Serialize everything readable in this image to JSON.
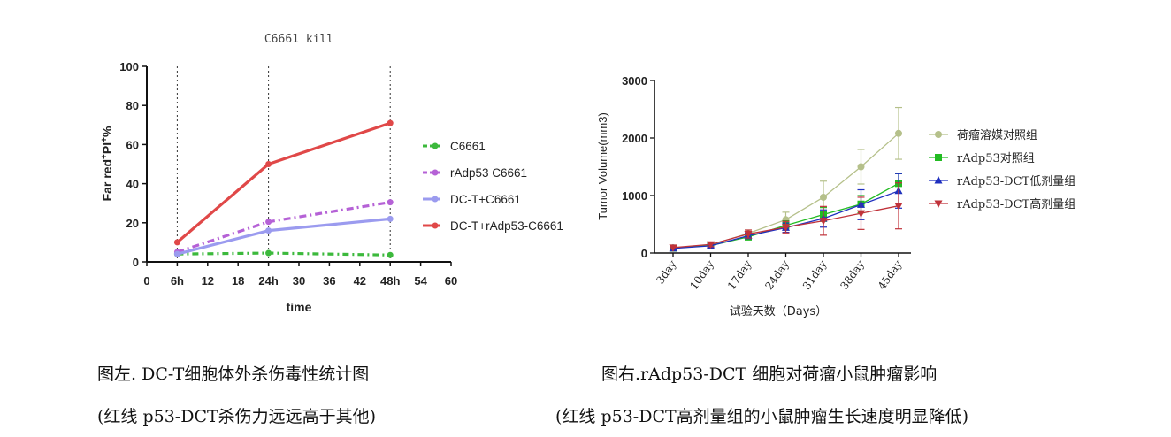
{
  "chart_data": [
    {
      "type": "line",
      "title": "C6661 kill",
      "xlabel": "time",
      "ylabel_main": "Far red",
      "ylabel_sup1": "+",
      "ylabel_mid": "PI",
      "ylabel_sup2": "+",
      "ylabel_tail": "%",
      "x_ticks": [
        "0",
        "6h",
        "12",
        "18",
        "24h",
        "30",
        "36",
        "42",
        "48h",
        "54",
        "60"
      ],
      "y_ticks": [
        "0",
        "20",
        "40",
        "60",
        "80",
        "100"
      ],
      "xlim": [
        0,
        60
      ],
      "ylim": [
        0,
        100
      ],
      "vlines": [
        6,
        24,
        48
      ],
      "x": [
        6,
        24,
        48
      ],
      "series": [
        {
          "name": "C6661",
          "values": [
            4,
            4.5,
            3.5
          ],
          "color": "#3cb93c",
          "dash": "7,4,2,4"
        },
        {
          "name": "rAdp53 C6661",
          "values": [
            5,
            20.5,
            30.5
          ],
          "color": "#b561d6",
          "dash": "8,4,2,4"
        },
        {
          "name": "DC-T+C6661",
          "values": [
            4,
            16,
            22
          ],
          "color": "#9b9bef",
          "dash": ""
        },
        {
          "name": "DC-T+rAdp53-C6661",
          "values": [
            10,
            50,
            71
          ],
          "color": "#e04848",
          "dash": ""
        }
      ],
      "legend_position": "right"
    },
    {
      "type": "line",
      "ylabel": "Tumor Volume(mm3)",
      "xlabel": "试验天数（Days）",
      "x_ticks": [
        "3day",
        "10day",
        "17day",
        "24day",
        "31day",
        "38day",
        "45day"
      ],
      "y_ticks": [
        "0",
        "1000",
        "2000",
        "3000"
      ],
      "ylim": [
        0,
        3000
      ],
      "series": [
        {
          "name": "荷瘤溶媒对照组",
          "values": [
            90,
            140,
            340,
            580,
            970,
            1500,
            2080
          ],
          "err": [
            30,
            40,
            60,
            130,
            280,
            300,
            450
          ],
          "color": "#b5c08a",
          "marker": "circle"
        },
        {
          "name": "rAdp53对照组",
          "values": [
            85,
            130,
            280,
            480,
            670,
            850,
            1210
          ],
          "err": [
            20,
            30,
            50,
            80,
            120,
            150,
            170
          ],
          "color": "#22bb22",
          "marker": "square"
        },
        {
          "name": "rAdp53-DCT低剂量组",
          "values": [
            80,
            125,
            300,
            440,
            600,
            840,
            1080
          ],
          "err": [
            20,
            30,
            50,
            80,
            150,
            260,
            300
          ],
          "color": "#1f2fbf",
          "marker": "triangle-up"
        },
        {
          "name": "rAdp53-DCT高剂量组",
          "values": [
            95,
            150,
            330,
            450,
            560,
            690,
            820
          ],
          "err": [
            25,
            40,
            70,
            100,
            250,
            280,
            400
          ],
          "color": "#c0323a",
          "marker": "triangle-down"
        }
      ],
      "legend_position": "right"
    }
  ],
  "captions": {
    "left_line1": "图左. DC-T细胞体外杀伤毒性统计图",
    "left_line2": "(红线 p53-DCT杀伤力远远高于其他)",
    "right_line1": "图右.rAdp53-DCT 细胞对荷瘤小鼠肿瘤影响",
    "right_line2": "(红线 p53-DCT高剂量组的小鼠肿瘤生长速度明显降低)"
  }
}
